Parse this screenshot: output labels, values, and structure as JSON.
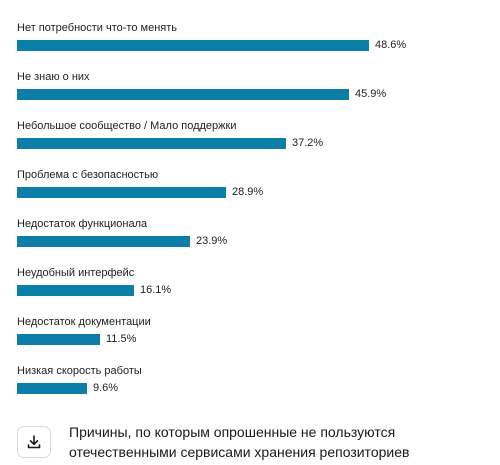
{
  "chart_data": {
    "type": "bar",
    "orientation": "horizontal",
    "categories": [
      "Нет потребности что-то менять",
      "Не знаю о них",
      "Небольшое сообщество / Мало поддержки",
      "Проблема с безопасностью",
      "Недостаток функционала",
      "Неудобный интерфейс",
      "Недостаток документации",
      "Низкая скорость работы"
    ],
    "values": [
      48.6,
      45.9,
      37.2,
      28.9,
      23.9,
      16.1,
      11.5,
      9.6
    ],
    "value_labels": [
      "48.6%",
      "45.9%",
      "37.2%",
      "28.9%",
      "23.9%",
      "16.1%",
      "11.5%",
      "9.6%"
    ],
    "unit": "%",
    "xlim": [
      0,
      48.6
    ],
    "grid": false,
    "bar_color": "#0b7fa8"
  },
  "caption": {
    "text": "Причины, по которым опрошенные не пользуются отечественными сервисами хранения репозиториев",
    "download_icon": "download-icon"
  }
}
